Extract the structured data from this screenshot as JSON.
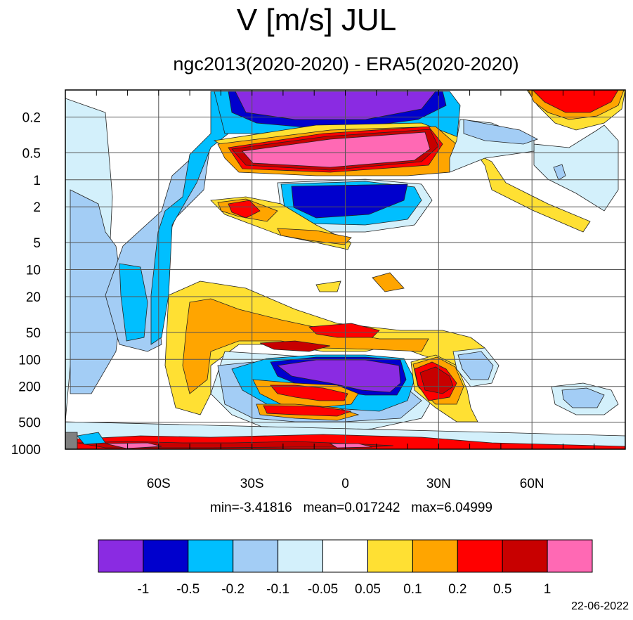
{
  "title": "V [m/s] JUL",
  "subtitle": "ngc2013(2020-2020) - ERA5(2020-2020)",
  "stats": "min=-3.41816   mean=0.017242   max=6.04999",
  "date": "22-06-2022",
  "colors": {
    "purple": "#8a2be2",
    "darkblue": "#0000cd",
    "deepskyblue": "#00bfff",
    "lightskyblue": "#a3cdf5",
    "paleblue": "#d3f0fb",
    "white": "#ffffff",
    "gold": "#ffe033",
    "orange": "#ffa500",
    "red": "#ff0000",
    "darkred": "#c80000",
    "pink": "#ff69b4",
    "grey": "#808080"
  },
  "chart_data": {
    "type": "heatmap",
    "title": "V [m/s] JUL",
    "subtitle": "ngc2013(2020-2020) - ERA5(2020-2020)",
    "x_axis": {
      "range": [
        -90,
        90
      ],
      "tick_values": [
        -60,
        -30,
        0,
        30,
        60
      ],
      "tick_labels": [
        "60S",
        "30S",
        "0",
        "30N",
        "60N"
      ]
    },
    "y_axis": {
      "scale": "log",
      "reversed": true,
      "range": [
        0.1,
        1000
      ],
      "tick_values": [
        0.2,
        0.5,
        1,
        2,
        5,
        10,
        20,
        50,
        100,
        200,
        500,
        1000
      ],
      "tick_labels": [
        "0.2",
        "0.5",
        "1",
        "2",
        "5",
        "10",
        "20",
        "50",
        "100",
        "200",
        "500",
        "1000"
      ]
    },
    "grid": true,
    "colorbar": {
      "position": "bottom",
      "levels": [
        "-1",
        "-0.5",
        "-0.2",
        "-0.1",
        "-0.05",
        "0.05",
        "0.1",
        "0.2",
        "0.5",
        "1"
      ],
      "colors": [
        "#8a2be2",
        "#0000cd",
        "#00bfff",
        "#a3cdf5",
        "#d3f0fb",
        "#ffffff",
        "#ffe033",
        "#ffa500",
        "#ff0000",
        "#c80000",
        "#ff69b4"
      ]
    },
    "stats": {
      "min": -3.41816,
      "mean": 0.017242,
      "max": 6.04999
    }
  }
}
